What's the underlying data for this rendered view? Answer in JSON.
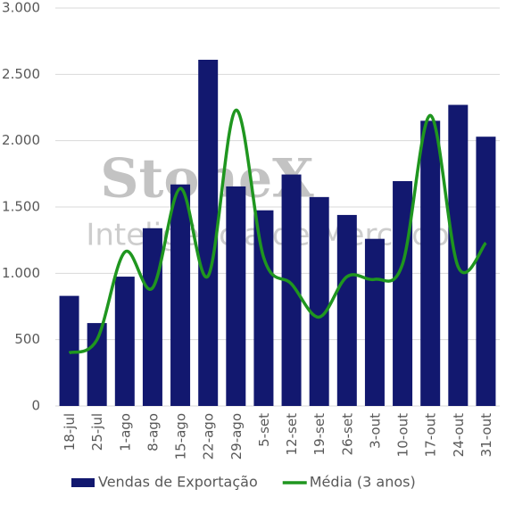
{
  "chart_data": {
    "type": "bar-line",
    "watermark": [
      "StoneX",
      "Inteligência de Mercado"
    ],
    "categories": [
      "18-jul",
      "25-jul",
      "1-ago",
      "8-ago",
      "15-ago",
      "22-ago",
      "29-ago",
      "5-set",
      "12-set",
      "19-set",
      "26-set",
      "3-out",
      "10-out",
      "17-out",
      "24-out",
      "31-out"
    ],
    "series": [
      {
        "name": "Vendas de Exportação",
        "type": "bar",
        "color": "#12186f",
        "values": [
          830,
          625,
          975,
          1340,
          1670,
          2610,
          1655,
          1475,
          1745,
          1575,
          1440,
          1260,
          1695,
          2150,
          2270,
          2030
        ]
      },
      {
        "name": "Média (3 anos)",
        "type": "line",
        "color": "#1f961f",
        "values": [
          400,
          500,
          1160,
          890,
          1640,
          980,
          2230,
          1120,
          920,
          670,
          975,
          955,
          1070,
          2190,
          1050,
          1230
        ]
      }
    ],
    "ylim": [
      0,
      3000
    ],
    "yticks": [
      0,
      500,
      {
        "value": 1000,
        "label": "1.000"
      },
      {
        "value": 1500,
        "label": "1.500"
      },
      {
        "value": 2000,
        "label": "2.000"
      },
      {
        "value": 2500,
        "label": "2.500"
      },
      {
        "value": 3000,
        "label": "3.000"
      }
    ],
    "grid": true,
    "legend": "bottom"
  }
}
